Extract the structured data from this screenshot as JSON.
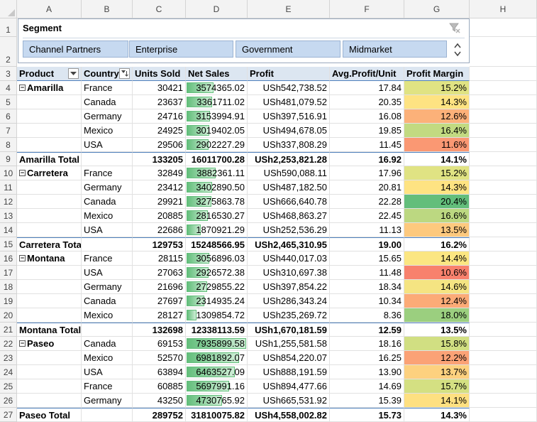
{
  "columns": [
    "A",
    "B",
    "C",
    "D",
    "E",
    "F",
    "G",
    "H"
  ],
  "slicer": {
    "title": "Segment",
    "items": [
      "Channel Partners",
      "Enterprise",
      "Government",
      "Midmarket"
    ]
  },
  "headers": {
    "product": "Product",
    "country": "Country",
    "units": "Units Sold",
    "net": "Net Sales",
    "profit": "Profit",
    "avg": "Avg.Profit/Unit",
    "margin": "Profit Margin"
  },
  "rows": [
    {
      "r": "4",
      "product": "Amarilla",
      "expander": "−",
      "country": "France",
      "units": "30421",
      "net": "3574365.02",
      "net_v": 3574365.02,
      "profit": "USh542,738.52",
      "avg": "17.84",
      "margin": "15.2%",
      "mcolor": "#e0e383"
    },
    {
      "r": "5",
      "country": "Canada",
      "units": "23637",
      "net": "3361711.02",
      "net_v": 3361711.02,
      "profit": "USh481,079.52",
      "avg": "20.35",
      "margin": "14.3%",
      "mcolor": "#fee382"
    },
    {
      "r": "6",
      "country": "Germany",
      "units": "24716",
      "net": "3153994.91",
      "net_v": 3153994.91,
      "profit": "USh397,516.91",
      "avg": "16.08",
      "margin": "12.6%",
      "mcolor": "#fcb179"
    },
    {
      "r": "7",
      "country": "Mexico",
      "units": "24925",
      "net": "3019402.05",
      "net_v": 3019402.05,
      "profit": "USh494,678.05",
      "avg": "19.85",
      "margin": "16.4%",
      "mcolor": "#c2da81"
    },
    {
      "r": "8",
      "country": "USA",
      "units": "29506",
      "net": "2902227.29",
      "net_v": 2902227.29,
      "profit": "USh337,808.29",
      "avg": "11.45",
      "margin": "11.6%",
      "mcolor": "#fa9873"
    },
    {
      "r": "9",
      "total": true,
      "product": "Amarilla Total",
      "units": "133205",
      "net": "16011700.28",
      "profit": "USh2,253,821.28",
      "avg": "16.92",
      "margin": "14.1%"
    },
    {
      "r": "10",
      "product": "Carretera",
      "expander": "−",
      "country": "France",
      "units": "32849",
      "net": "3882361.11",
      "net_v": 3882361.11,
      "profit": "USh590,088.11",
      "avg": "17.96",
      "margin": "15.2%",
      "mcolor": "#e0e383"
    },
    {
      "r": "11",
      "country": "Germany",
      "units": "23412",
      "net": "3402890.50",
      "net_v": 3402890.5,
      "profit": "USh487,182.50",
      "avg": "20.81",
      "margin": "14.3%",
      "mcolor": "#fee382"
    },
    {
      "r": "12",
      "country": "Canada",
      "units": "29921",
      "net": "3275863.78",
      "net_v": 3275863.78,
      "profit": "USh666,640.78",
      "avg": "22.28",
      "margin": "20.4%",
      "mcolor": "#63be7b"
    },
    {
      "r": "13",
      "country": "Mexico",
      "units": "20885",
      "net": "2816530.27",
      "net_v": 2816530.27,
      "profit": "USh468,863.27",
      "avg": "22.45",
      "margin": "16.6%",
      "mcolor": "#bcd881"
    },
    {
      "r": "14",
      "country": "USA",
      "units": "22686",
      "net": "1870921.29",
      "net_v": 1870921.29,
      "profit": "USh252,536.29",
      "avg": "11.13",
      "margin": "13.5%",
      "mcolor": "#fdc97e"
    },
    {
      "r": "15",
      "total": true,
      "product": "Carretera Total",
      "units": "129753",
      "net": "15248566.95",
      "profit": "USh2,465,310.95",
      "avg": "19.00",
      "margin": "16.2%"
    },
    {
      "r": "16",
      "product": "Montana",
      "expander": "−",
      "country": "France",
      "units": "28115",
      "net": "3056896.03",
      "net_v": 3056896.03,
      "profit": "USh440,017.03",
      "avg": "15.65",
      "margin": "14.4%",
      "mcolor": "#fbe682"
    },
    {
      "r": "17",
      "country": "USA",
      "units": "27063",
      "net": "2926572.38",
      "net_v": 2926572.38,
      "profit": "USh310,697.38",
      "avg": "11.48",
      "margin": "10.6%",
      "mcolor": "#f8816d"
    },
    {
      "r": "18",
      "country": "Germany",
      "units": "21696",
      "net": "2729855.22",
      "net_v": 2729855.22,
      "profit": "USh397,854.22",
      "avg": "18.34",
      "margin": "14.6%",
      "mcolor": "#f5e482"
    },
    {
      "r": "19",
      "country": "Canada",
      "units": "27697",
      "net": "2314935.24",
      "net_v": 2314935.24,
      "profit": "USh286,343.24",
      "avg": "10.34",
      "margin": "12.4%",
      "mcolor": "#fcab77"
    },
    {
      "r": "20",
      "country": "Mexico",
      "units": "28127",
      "net": "1309854.72",
      "net_v": 1309854.72,
      "profit": "USh235,269.72",
      "avg": "8.36",
      "margin": "18.0%",
      "mcolor": "#9bcf7f"
    },
    {
      "r": "21",
      "total": true,
      "product": "Montana Total",
      "units": "132698",
      "net": "12338113.59",
      "profit": "USh1,670,181.59",
      "avg": "12.59",
      "margin": "13.5%"
    },
    {
      "r": "22",
      "product": "Paseo",
      "expander": "−",
      "country": "Canada",
      "units": "69153",
      "net": "7935899.58",
      "net_v": 7935899.58,
      "profit": "USh1,255,581.58",
      "avg": "18.16",
      "margin": "15.8%",
      "mcolor": "#d1df82"
    },
    {
      "r": "23",
      "country": "Mexico",
      "units": "52570",
      "net": "6981892.07",
      "net_v": 6981892.07,
      "profit": "USh854,220.07",
      "avg": "16.25",
      "margin": "12.2%",
      "mcolor": "#fba276"
    },
    {
      "r": "24",
      "country": "USA",
      "units": "63894",
      "net": "6463527.09",
      "net_v": 6463527.09,
      "profit": "USh888,191.59",
      "avg": "13.90",
      "margin": "13.7%",
      "mcolor": "#fdd17f"
    },
    {
      "r": "25",
      "country": "France",
      "units": "60885",
      "net": "5697991.16",
      "net_v": 5697991.16,
      "profit": "USh894,477.66",
      "avg": "14.69",
      "margin": "15.7%",
      "mcolor": "#d4e082"
    },
    {
      "r": "26",
      "country": "Germany",
      "units": "43250",
      "net": "4730765.92",
      "net_v": 4730765.92,
      "profit": "USh665,531.92",
      "avg": "15.39",
      "margin": "14.1%",
      "mcolor": "#fee081"
    },
    {
      "r": "27",
      "total": true,
      "product": "Paseo Total",
      "units": "289752",
      "net": "31810075.82",
      "profit": "USh4,558,002.82",
      "avg": "15.73",
      "margin": "14.3%"
    }
  ],
  "databar_max": 7935899.58,
  "colors": {
    "accent": "#4f81bd",
    "header_fill": "#dce6f1",
    "slicer_button": "#c6d9f0",
    "databar": "#63be7b"
  }
}
